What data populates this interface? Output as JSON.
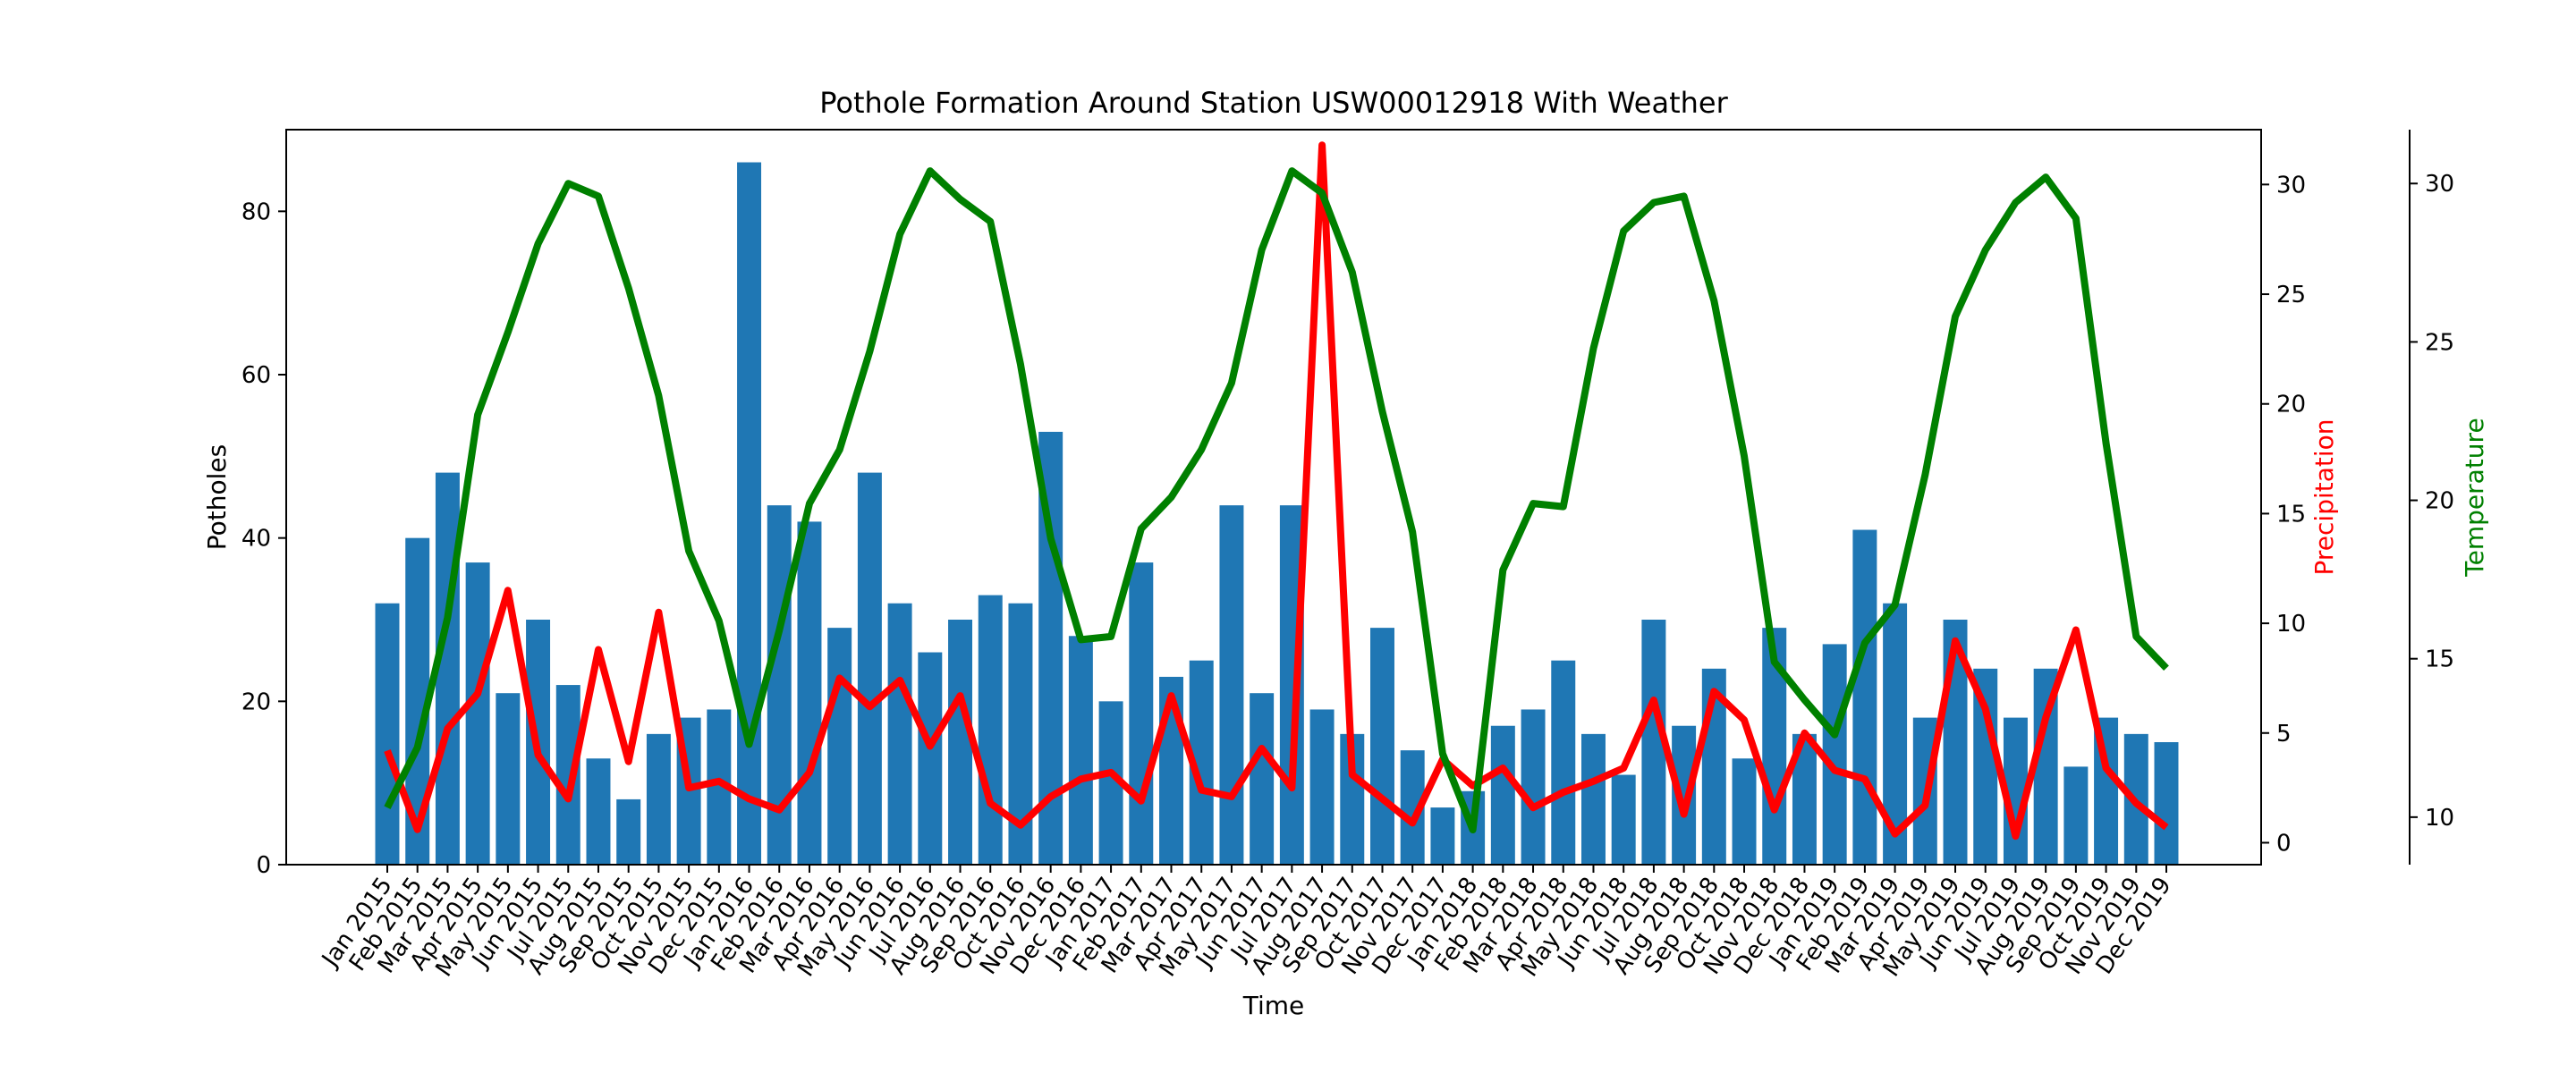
{
  "chart_data": {
    "type": "bar",
    "title": "Pothole Formation Around Station USW00012918 With Weather",
    "xlabel": "Time",
    "ylabel": "Potholes",
    "categories": [
      "Jan 2015",
      "Feb 2015",
      "Mar 2015",
      "Apr 2015",
      "May 2015",
      "Jun 2015",
      "Jul 2015",
      "Aug 2015",
      "Sep 2015",
      "Oct 2015",
      "Nov 2015",
      "Dec 2015",
      "Jan 2016",
      "Feb 2016",
      "Mar 2016",
      "Apr 2016",
      "May 2016",
      "Jun 2016",
      "Jul 2016",
      "Aug 2016",
      "Sep 2016",
      "Oct 2016",
      "Nov 2016",
      "Dec 2016",
      "Jan 2017",
      "Feb 2017",
      "Mar 2017",
      "Apr 2017",
      "May 2017",
      "Jun 2017",
      "Jul 2017",
      "Aug 2017",
      "Sep 2017",
      "Oct 2017",
      "Nov 2017",
      "Dec 2017",
      "Jan 2018",
      "Feb 2018",
      "Mar 2018",
      "Apr 2018",
      "May 2018",
      "Jun 2018",
      "Jul 2018",
      "Aug 2018",
      "Sep 2018",
      "Oct 2018",
      "Nov 2018",
      "Dec 2018",
      "Jan 2019",
      "Feb 2019",
      "Mar 2019",
      "Apr 2019",
      "May 2019",
      "Jun 2019",
      "Jul 2019",
      "Aug 2019",
      "Sep 2019",
      "Oct 2019",
      "Nov 2019",
      "Dec 2019"
    ],
    "x_tick_labels": [
      "Jan 2015",
      "Feb 2015",
      "Mar 2015",
      "Apr 2015",
      "May 2015",
      "Jun 2015",
      "Jul 2015",
      "Aug 2015",
      "Sep 2015",
      "Oct 2015",
      "Nov 2015",
      "Dec 2015",
      "Jan 2016",
      "Feb 2016",
      "Mar 2016",
      "Apr 2016",
      "May 2016",
      "Jun 2016",
      "Jul 2016",
      "Aug 2016",
      "Sep 2016",
      "Oct 2016",
      "Nov 2016",
      "Dec 2016",
      "Jan 2017",
      "Feb 2017",
      "Mar 2017",
      "Apr 2017",
      "May 2017",
      "Jun 2017",
      "Jul 2017",
      "Aug 2017",
      "Sep 2017",
      "Oct 2017",
      "Nov 2017",
      "Dec 2017",
      "Jan 2018",
      "Feb 2018",
      "Mar 2018",
      "Apr 2018",
      "May 2018",
      "Jun 2018",
      "Jul 2018",
      "Aug 2018",
      "Sep 2018",
      "Oct 2018",
      "Nov 2018",
      "Dec 2018",
      "Jan 2019",
      "Feb 2019",
      "Mar 2019",
      "Apr 2019",
      "May 2019",
      "Jun 2019",
      "Jul 2019",
      "Aug 2019",
      "Sep 2019",
      "Oct 2019",
      "Nov 2019",
      "Dec 2019"
    ],
    "ylim": [
      0,
      90
    ],
    "yticks": [
      0,
      20,
      40,
      60,
      80
    ],
    "grid": false,
    "series": [
      {
        "type": "bar",
        "axis": "left",
        "color": "#1f77b4",
        "values": [
          32,
          40,
          48,
          37,
          21,
          30,
          22,
          13,
          8,
          16,
          18,
          19,
          86,
          44,
          42,
          29,
          48,
          32,
          26,
          30,
          33,
          32,
          53,
          28,
          20,
          37,
          23,
          25,
          44,
          21,
          44,
          19,
          16,
          29,
          14,
          7,
          9,
          17,
          19,
          25,
          16,
          11,
          30,
          17,
          24,
          13,
          29,
          16,
          27,
          41,
          32,
          18,
          30,
          24,
          18,
          24,
          12,
          18,
          16,
          15
        ]
      },
      {
        "type": "line",
        "axis": "right1",
        "color": "#ff0000",
        "values": [
          4.2,
          0.6,
          5.2,
          6.8,
          11.5,
          4,
          2,
          8.8,
          3.7,
          10.5,
          2.5,
          2.8,
          2,
          1.5,
          3.2,
          7.5,
          6.2,
          7.4,
          4.4,
          6.7,
          1.8,
          0.8,
          2.1,
          2.9,
          3.2,
          1.9,
          6.7,
          2.4,
          2.1,
          4.3,
          2.5,
          31.8,
          3.1,
          2,
          0.9,
          3.8,
          2.6,
          3.4,
          1.6,
          2.3,
          2.8,
          3.4,
          6.5,
          1.3,
          6.9,
          5.6,
          1.5,
          5,
          3.3,
          2.9,
          0.4,
          1.7,
          9.2,
          6.1,
          0.3,
          5.7,
          9.7,
          3.4,
          1.8,
          0.7
        ]
      },
      {
        "type": "line",
        "axis": "right2",
        "color": "#008000",
        "values": [
          10.3,
          12.2,
          16.3,
          22.7,
          25.3,
          28.1,
          30,
          29.6,
          26.7,
          23.3,
          18.4,
          16.2,
          12.3,
          15.9,
          19.9,
          21.6,
          24.7,
          28.4,
          30.4,
          29.5,
          28.8,
          24.3,
          18.8,
          15.6,
          15.7,
          19.1,
          20.1,
          21.6,
          23.7,
          27.9,
          30.4,
          29.7,
          27.2,
          22.8,
          19,
          12,
          9.6,
          17.8,
          19.9,
          19.8,
          24.8,
          28.5,
          29.4,
          29.6,
          26.3,
          21.4,
          14.9,
          13.7,
          12.6,
          15.5,
          16.7,
          20.8,
          25.8,
          27.9,
          29.4,
          30.2,
          28.9,
          21.8,
          15.7,
          14.7
        ]
      }
    ],
    "right_axes": [
      {
        "label": "Precipitation",
        "color": "#ff0000",
        "ylim": [
          -1.0,
          32.5
        ],
        "yticks": [
          0,
          5,
          10,
          15,
          20,
          25,
          30
        ]
      },
      {
        "label": "Temperature",
        "color": "#008000",
        "ylim": [
          8.5,
          31.7
        ],
        "yticks": [
          10,
          15,
          20,
          25,
          30
        ]
      }
    ]
  }
}
